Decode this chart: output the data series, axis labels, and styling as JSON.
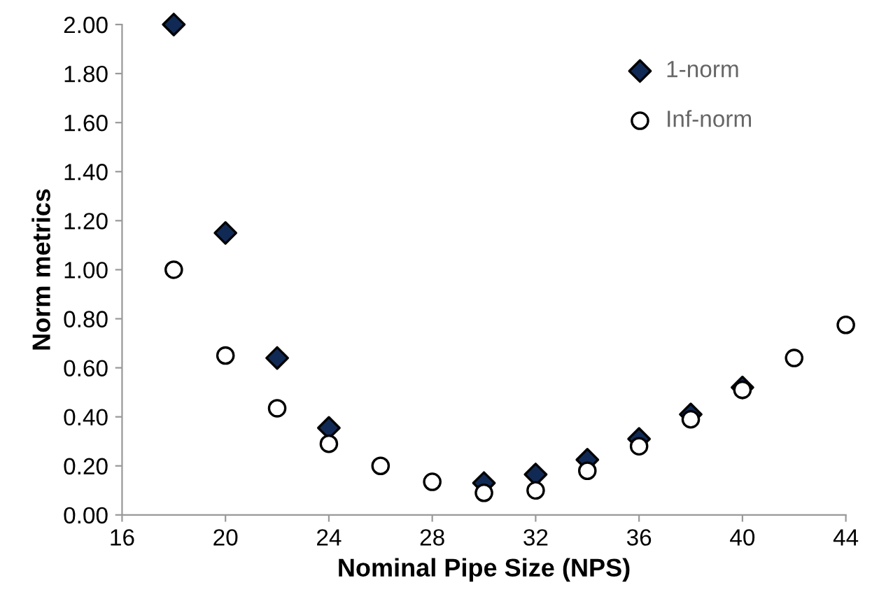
{
  "chart_data": {
    "type": "scatter",
    "xlabel": "Nominal Pipe Size (NPS)",
    "ylabel": "Norm metrics",
    "x": [
      18,
      20,
      22,
      24,
      26,
      28,
      30,
      32,
      34,
      36,
      38,
      40,
      42,
      44
    ],
    "series": [
      {
        "name": "1-norm",
        "color": "#112a55",
        "marker": "diamond",
        "values": [
          2.0,
          1.15,
          0.64,
          0.355,
          null,
          null,
          0.13,
          0.165,
          0.225,
          0.31,
          0.41,
          0.52,
          null,
          null
        ]
      },
      {
        "name": "Inf-norm",
        "color": "#ffffff",
        "marker": "circle",
        "values": [
          1.0,
          0.65,
          0.435,
          0.29,
          0.2,
          0.135,
          0.09,
          0.1,
          0.18,
          0.28,
          0.39,
          0.51,
          0.64,
          0.775
        ]
      }
    ],
    "xlim": [
      16,
      44
    ],
    "xticks": [
      16,
      20,
      24,
      28,
      32,
      36,
      40,
      44
    ],
    "ylim": [
      0,
      2
    ],
    "yticks": [
      {
        "value": 0,
        "label": "0.00"
      },
      {
        "value": 0.2,
        "label": "0.20"
      },
      {
        "value": 0.4,
        "label": "0.40"
      },
      {
        "value": 0.6,
        "label": "0.60"
      },
      {
        "value": 0.8,
        "label": "0.80"
      },
      {
        "value": 1.0,
        "label": "1.00"
      },
      {
        "value": 1.2,
        "label": "1.20"
      },
      {
        "value": 1.4,
        "label": "1.40"
      },
      {
        "value": 1.6,
        "label": "1.60"
      },
      {
        "value": 1.8,
        "label": "1.80"
      },
      {
        "value": 2.0,
        "label": "2.00"
      }
    ],
    "grid": false,
    "legend": "top right"
  }
}
